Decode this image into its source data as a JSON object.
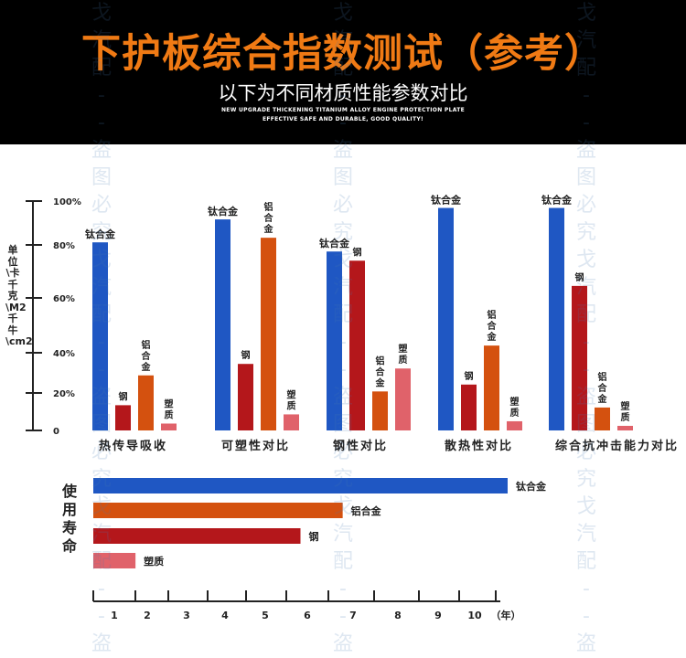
{
  "header": {
    "title": "下护板综合指数测试（参考）",
    "subtitle": "以下为不同材质性能参数对比",
    "english_line1": "NEW UPGRADE THICKENING TITANIUM ALLOY ENGINE PROTECTION PLATE",
    "english_line2": "EFFECTIVE SAFE AND DURABLE, GOOD QUALITY!"
  },
  "watermark": "戈汽配--盗图必究",
  "colors": {
    "titanium": "#1f57c3",
    "aluminum": "#d4510f",
    "steel": "#b4171b",
    "plastic": "#e0626a",
    "header_bg": "#000000",
    "title": "#f07a14"
  },
  "chart_data": [
    {
      "type": "bar",
      "ylabel": "单位\\卡 千克\\M2 千牛\\cm2",
      "y_ticks": [
        "0",
        "20%",
        "40%",
        "60%",
        "80%",
        "100%"
      ],
      "ylim": [
        0,
        100
      ],
      "groups": [
        {
          "name": "热传导吸收",
          "bars": [
            {
              "label": "钛合金",
              "material": "titanium",
              "value": 82
            },
            {
              "label": "钢",
              "material": "steel",
              "value": 11
            },
            {
              "label": "铝合金",
              "material": "aluminum",
              "value": 24
            },
            {
              "label": "塑质",
              "material": "plastic",
              "value": 3
            }
          ]
        },
        {
          "name": "可塑性对比",
          "bars": [
            {
              "label": "钛合金",
              "material": "titanium",
              "value": 92
            },
            {
              "label": "钢",
              "material": "steel",
              "value": 29
            },
            {
              "label": "铝合金",
              "material": "aluminum",
              "value": 84
            },
            {
              "label": "塑质",
              "material": "plastic",
              "value": 7
            }
          ]
        },
        {
          "name": "钢性对比",
          "bars": [
            {
              "label": "钛合金",
              "material": "titanium",
              "value": 78
            },
            {
              "label": "钢",
              "material": "steel",
              "value": 74
            },
            {
              "label": "铝合金",
              "material": "aluminum",
              "value": 17
            },
            {
              "label": "塑质",
              "material": "plastic",
              "value": 27
            }
          ]
        },
        {
          "name": "散热性对比",
          "bars": [
            {
              "label": "钛合金",
              "material": "titanium",
              "value": 97
            },
            {
              "label": "钢",
              "material": "steel",
              "value": 20
            },
            {
              "label": "铝合金",
              "material": "aluminum",
              "value": 37
            },
            {
              "label": "塑质",
              "material": "plastic",
              "value": 4
            }
          ]
        },
        {
          "name": "综合抗冲击能力对比",
          "bars": [
            {
              "label": "钛合金",
              "material": "titanium",
              "value": 97
            },
            {
              "label": "钢",
              "material": "steel",
              "value": 63
            },
            {
              "label": "铝合金",
              "material": "aluminum",
              "value": 10
            },
            {
              "label": "塑质",
              "material": "plastic",
              "value": 2
            }
          ]
        }
      ]
    },
    {
      "type": "bar",
      "orientation": "horizontal",
      "ylabel": "使用寿命",
      "x_ticks": [
        "1",
        "2",
        "3",
        "4",
        "5",
        "6",
        "7",
        "8",
        "9",
        "10"
      ],
      "x_unit": "（年）",
      "xlim": [
        0,
        11
      ],
      "series": [
        {
          "name": "钛合金",
          "material": "titanium",
          "value": 10.8
        },
        {
          "name": "铝合金",
          "material": "aluminum",
          "value": 6.5
        },
        {
          "name": "钢",
          "material": "steel",
          "value": 5.4
        },
        {
          "name": "塑质",
          "material": "plastic",
          "value": 1.1
        }
      ]
    }
  ]
}
